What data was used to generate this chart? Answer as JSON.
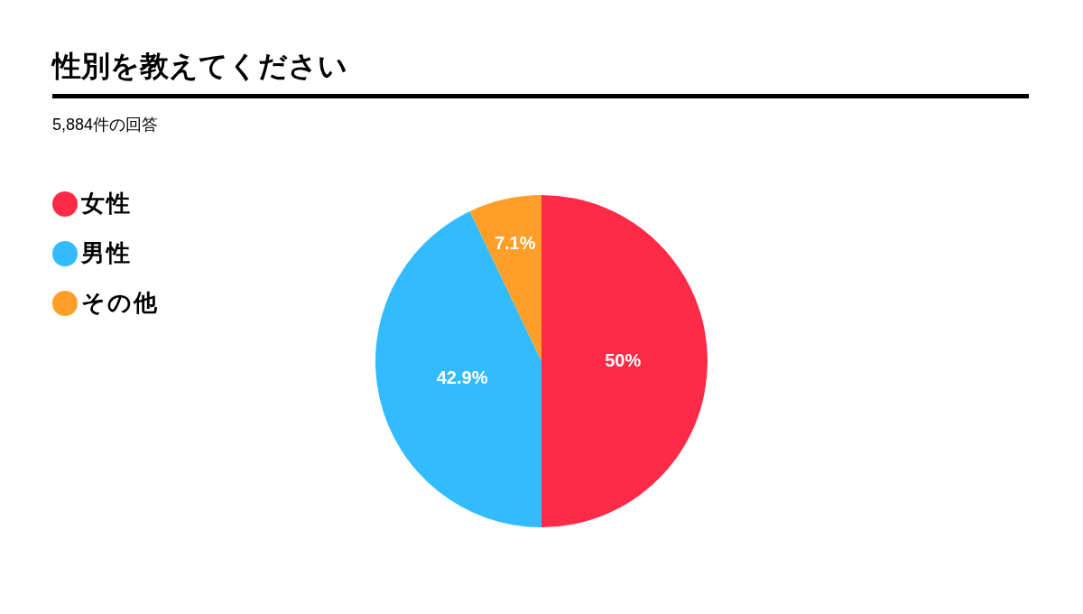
{
  "chart_data": {
    "type": "pie",
    "title": "性別を教えてください",
    "subtitle": "5,884件の回答",
    "categories": [
      "女性",
      "男性",
      "その他"
    ],
    "values": [
      50,
      42.9,
      7.1
    ],
    "colors": [
      "#ff2a47",
      "#33bbff",
      "#ff9f2a"
    ],
    "value_labels": [
      "50%",
      "42.9%",
      "7.1%"
    ],
    "legend": "top left"
  }
}
